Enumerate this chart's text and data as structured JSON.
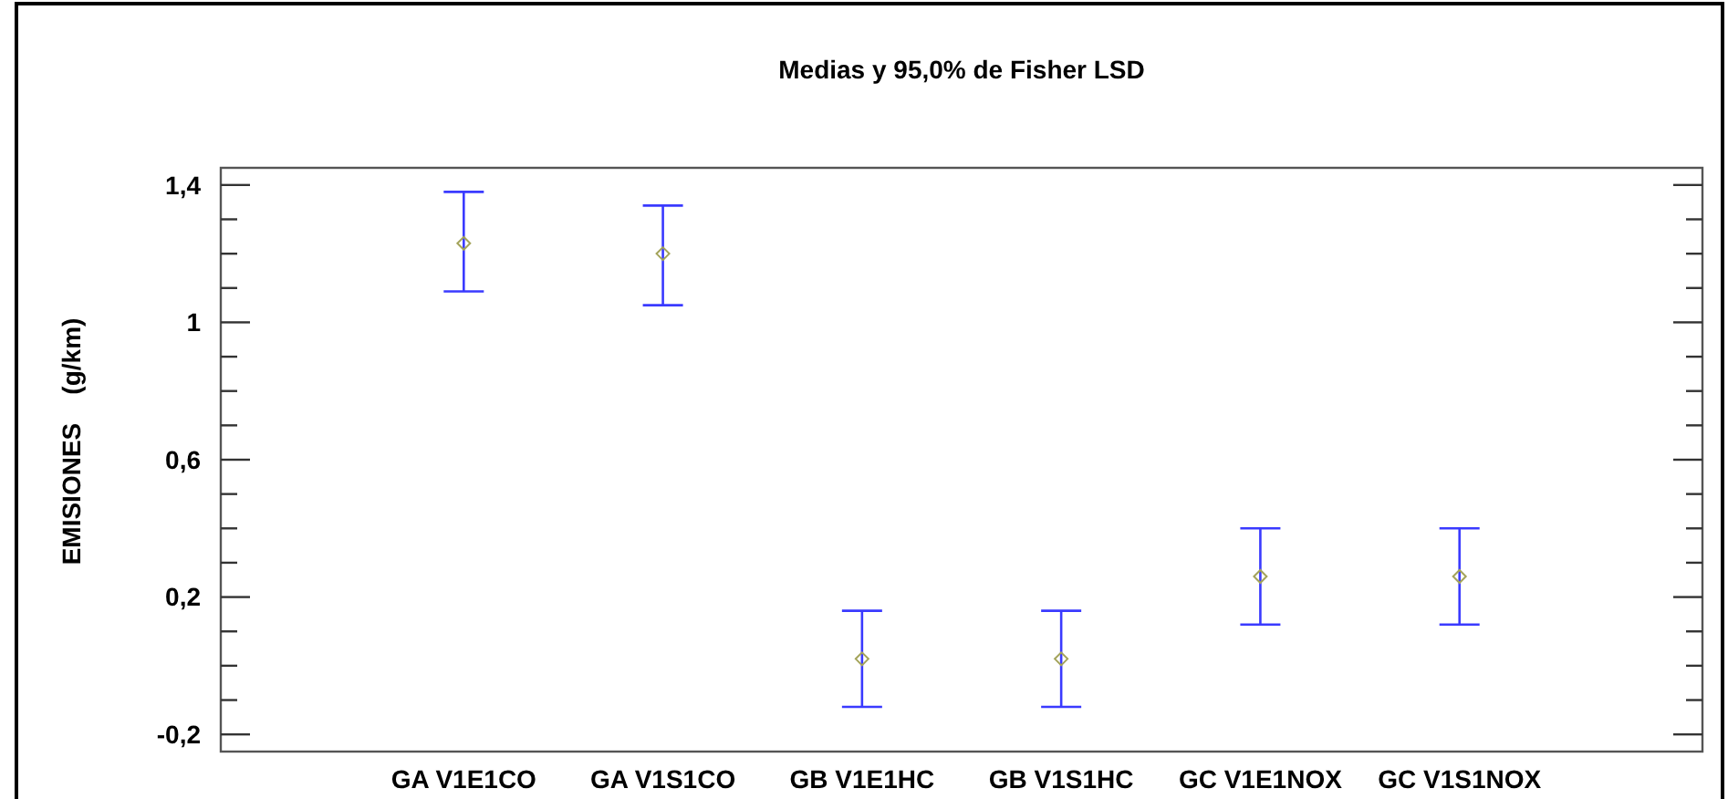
{
  "chart_data": {
    "type": "scatter",
    "title": "Medias y 95,0% de Fisher LSD",
    "ylabel": "EMISIONES    (g/km)",
    "categories": [
      "GA V1E1CO",
      "GA V1S1CO",
      "GB V1E1HC",
      "GB V1S1HC",
      "GC V1E1NOX",
      "GC V1S1NOX"
    ],
    "series": [
      {
        "color": "#a3a35a",
        "values": [
          1.23,
          1.2,
          0.02,
          0.02,
          0.26,
          0.26
        ],
        "errors": [
          [
            1.09,
            1.38
          ],
          [
            1.05,
            1.34
          ],
          0.14,
          0.14,
          0.14,
          0.14
        ]
      }
    ],
    "ylim": [
      -0.25,
      1.45
    ],
    "yticks": [
      {
        "value": -0.2,
        "label": "-0,2"
      },
      {
        "value": -0.1,
        "label": null
      },
      {
        "value": 0,
        "label": null
      },
      {
        "value": 0.1,
        "label": null
      },
      {
        "value": 0.2,
        "label": "0,2"
      },
      {
        "value": 0.3,
        "label": null
      },
      {
        "value": 0.4,
        "label": null
      },
      {
        "value": 0.5,
        "label": null
      },
      {
        "value": 0.6,
        "label": "0,6"
      },
      {
        "value": 0.7,
        "label": null
      },
      {
        "value": 0.8,
        "label": null
      },
      {
        "value": 0.9,
        "label": null
      },
      1,
      {
        "value": 1.1,
        "label": null
      },
      {
        "value": 1.2,
        "label": null
      },
      {
        "value": 1.3,
        "label": null
      },
      {
        "value": 1.4,
        "label": "1,4"
      }
    ],
    "marker": "diamond"
  }
}
